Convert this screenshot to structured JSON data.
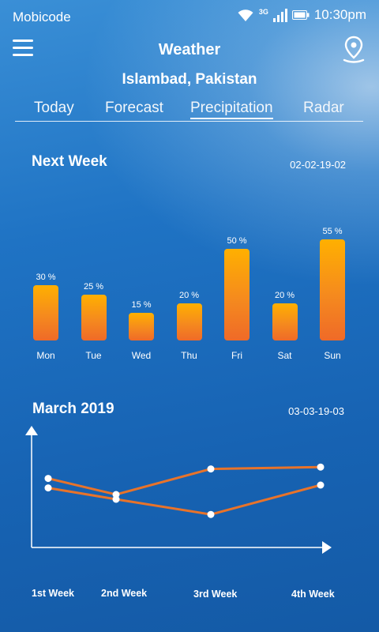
{
  "status_bar": {
    "carrier": "Mobicode",
    "network": "3G",
    "time": "10:30pm"
  },
  "app_bar": {
    "title": "Weather",
    "menu_icon": "hamburger-icon",
    "location_icon": "map-pin-icon"
  },
  "location": {
    "name": "Islambad, Pakistan"
  },
  "tabs": [
    {
      "label": "Today",
      "active": false
    },
    {
      "label": "Forecast",
      "active": false
    },
    {
      "label": "Precipitation",
      "active": true
    },
    {
      "label": "Radar",
      "active": false
    }
  ],
  "next_week": {
    "title": "Next Week",
    "range": "02-02-19-02"
  },
  "march": {
    "title": "March 2019",
    "range": "03-03-19-03"
  },
  "colors": {
    "bar_top": "#ffb000",
    "bar_bottom": "#ef6a28",
    "line": "#e8732a",
    "background": "#1f73c4"
  },
  "chart_data": [
    {
      "type": "bar",
      "title": "Next Week",
      "categories": [
        "Mon",
        "Tue",
        "Wed",
        "Thu",
        "Fri",
        "Sat",
        "Sun"
      ],
      "values": [
        30,
        25,
        15,
        20,
        50,
        20,
        55
      ],
      "value_labels": [
        "30 %",
        "25 %",
        "15 %",
        "20 %",
        "50 %",
        "20 %",
        "55 %"
      ],
      "ylim": [
        0,
        55
      ]
    },
    {
      "type": "line",
      "title": "March 2019",
      "categories": [
        "1st Week",
        "2nd Week",
        "3rd Week",
        "4th Week"
      ],
      "series": [
        {
          "values": [
            0.62,
            0.45,
            0.72,
            0.74
          ]
        },
        {
          "values": [
            0.52,
            0.4,
            0.24,
            0.55
          ]
        }
      ],
      "ylim": [
        0,
        1
      ]
    }
  ]
}
